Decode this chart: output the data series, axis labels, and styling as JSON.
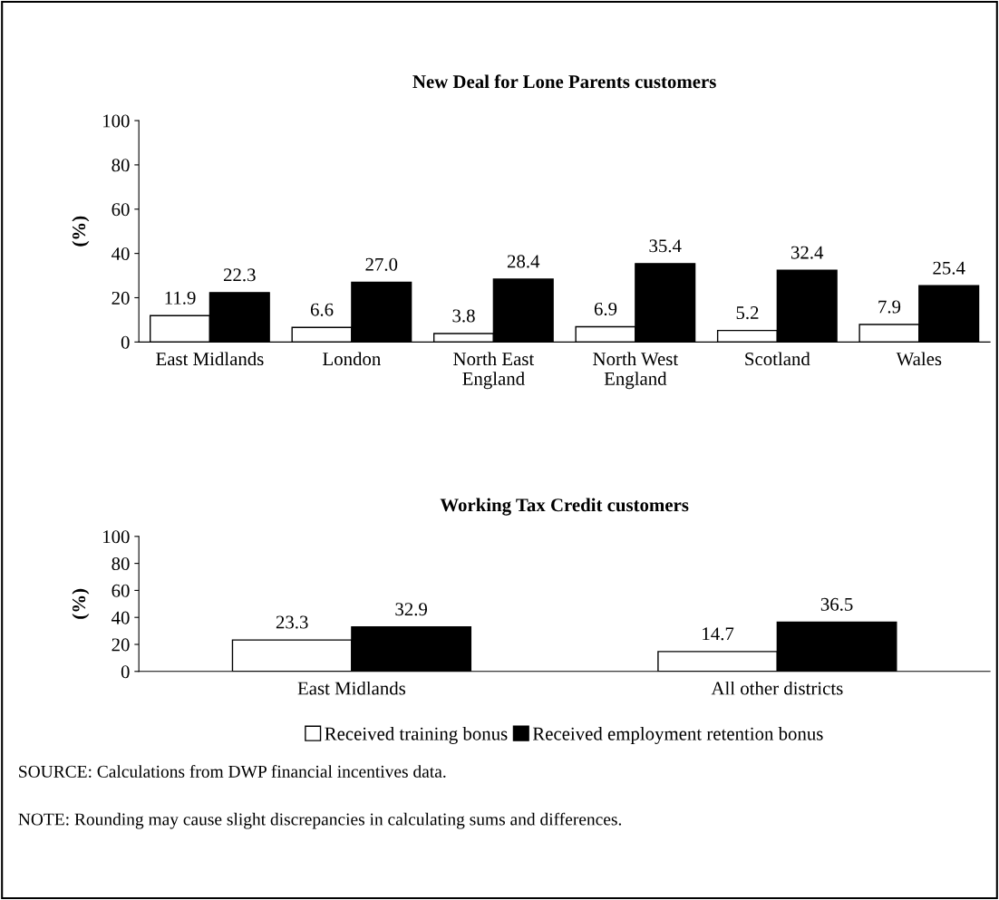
{
  "chart_data": [
    {
      "type": "bar",
      "title": "New Deal for Lone Parents customers",
      "ylabel": "(%)",
      "categories": [
        "East Midlands",
        "London",
        "North East\nEngland",
        "North West\nEngland",
        "Scotland",
        "Wales"
      ],
      "ylim": [
        0,
        100
      ],
      "yticks": [
        0,
        20,
        40,
        60,
        80,
        100
      ],
      "grid": false,
      "legend": false,
      "series": [
        {
          "color": "#ffffff",
          "values": [
            11.9,
            6.6,
            3.8,
            6.9,
            5.2,
            7.9
          ],
          "value_labels": [
            "11.9",
            "6.6",
            "3.8",
            "6.9",
            "5.2",
            "7.9"
          ]
        },
        {
          "color": "#000000",
          "values": [
            22.3,
            27.0,
            28.4,
            35.4,
            32.4,
            25.4
          ],
          "value_labels": [
            "22.3",
            "27.0",
            "28.4",
            "35.4",
            "32.4",
            "25.4"
          ]
        }
      ]
    },
    {
      "type": "bar",
      "title": "Working Tax Credit customers",
      "ylabel": "(%)",
      "categories": [
        "East Midlands",
        "All other districts"
      ],
      "ylim": [
        0,
        100
      ],
      "yticks": [
        0,
        20,
        40,
        60,
        80,
        100
      ],
      "grid": false,
      "legend": "bottom",
      "series": [
        {
          "name": "Received training bonus",
          "color": "#ffffff",
          "values": [
            23.3,
            14.7
          ],
          "value_labels": [
            "23.3",
            "14.7"
          ]
        },
        {
          "name": "Received employment retention bonus",
          "color": "#000000",
          "values": [
            32.9,
            36.5
          ],
          "value_labels": [
            "32.9",
            "36.5"
          ]
        }
      ],
      "annotations": [
        "SOURCE: Calculations from DWP financial incentives data.",
        "NOTE: Rounding may cause slight discrepancies in calculating sums and differences."
      ]
    }
  ]
}
